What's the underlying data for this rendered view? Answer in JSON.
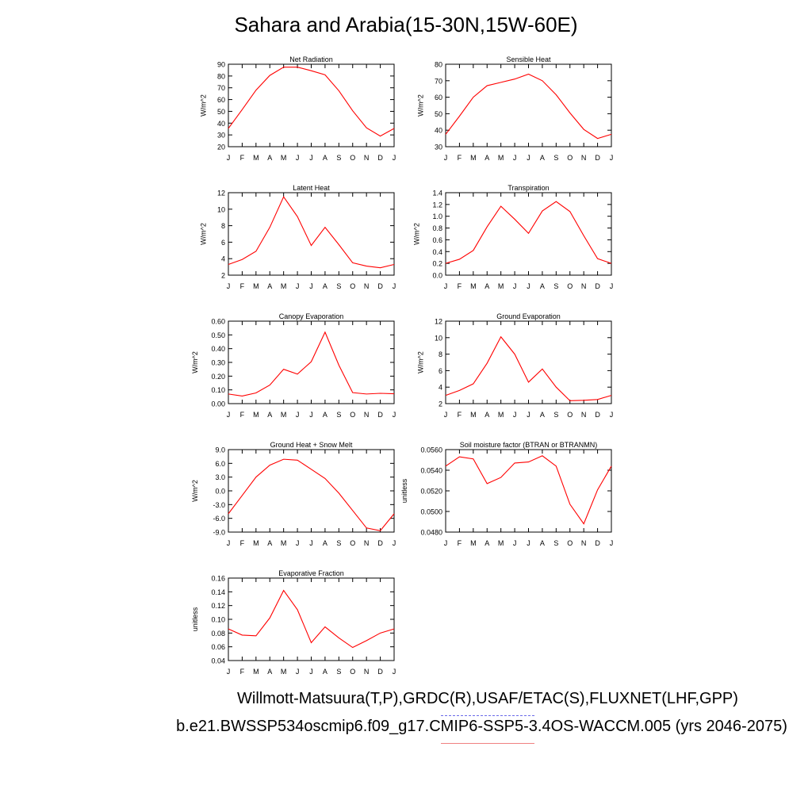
{
  "title": "Sahara and Arabia(15-30N,15W-60E)",
  "legend": {
    "line1": "Willmott-Matsuura(T,P),GRDC(R),USAF/ETAC(S),FLUXNET(LHF,GPP)",
    "line2": "b.e21.BWSSP534oscmip6.f09_g17.CMIP6-SSP5-3.4OS-WACCM.005 (yrs 2046-2075)"
  },
  "colors": {
    "series": "#ff0000",
    "axis": "#000000",
    "dash_blue": "#6a6ae8",
    "dash_red": "#f08080"
  },
  "chart_data": [
    {
      "type": "line",
      "title": "Net Radiation",
      "ylabel": "W/m^2",
      "x": [
        "J",
        "F",
        "M",
        "A",
        "M",
        "J",
        "J",
        "A",
        "S",
        "O",
        "N",
        "D",
        "J"
      ],
      "ylim": [
        20,
        90
      ],
      "yticks": [
        "20",
        "30",
        "40",
        "50",
        "60",
        "70",
        "80",
        "90"
      ],
      "values": [
        35.5,
        51.5,
        68,
        80.5,
        87.5,
        87.5,
        84.5,
        81,
        67.5,
        50.5,
        36,
        29,
        35.5
      ]
    },
    {
      "type": "line",
      "title": "Sensible Heat",
      "ylabel": "W/m^2",
      "x": [
        "J",
        "F",
        "M",
        "A",
        "M",
        "J",
        "J",
        "A",
        "S",
        "O",
        "N",
        "D",
        "J"
      ],
      "ylim": [
        30,
        80
      ],
      "yticks": [
        "30",
        "40",
        "50",
        "60",
        "70",
        "80"
      ],
      "values": [
        37.5,
        48.5,
        60,
        67,
        69,
        71,
        74,
        70,
        61.5,
        50.5,
        40.5,
        35,
        37.5
      ]
    },
    {
      "type": "line",
      "title": "Latent Heat",
      "ylabel": "W/m^2",
      "x": [
        "J",
        "F",
        "M",
        "A",
        "M",
        "J",
        "J",
        "A",
        "S",
        "O",
        "N",
        "D",
        "J"
      ],
      "ylim": [
        2,
        12
      ],
      "yticks": [
        "2",
        "4",
        "6",
        "8",
        "10",
        "12"
      ],
      "values": [
        3.3,
        3.9,
        4.9,
        7.8,
        11.5,
        9.1,
        5.6,
        7.8,
        5.7,
        3.5,
        3.1,
        2.9,
        3.3
      ]
    },
    {
      "type": "line",
      "title": "Transpiration",
      "ylabel": "W/m^2",
      "x": [
        "J",
        "F",
        "M",
        "A",
        "M",
        "J",
        "J",
        "A",
        "S",
        "O",
        "N",
        "D",
        "J"
      ],
      "ylim": [
        0,
        1.4
      ],
      "yticks": [
        "0.0",
        "0.2",
        "0.4",
        "0.6",
        "0.8",
        "1.0",
        "1.2",
        "1.4"
      ],
      "values": [
        0.2,
        0.27,
        0.42,
        0.82,
        1.17,
        0.95,
        0.71,
        1.09,
        1.25,
        1.08,
        0.67,
        0.28,
        0.2
      ]
    },
    {
      "type": "line",
      "title": "Canopy Evaporation",
      "ylabel": "W/m^2",
      "x": [
        "J",
        "F",
        "M",
        "A",
        "M",
        "J",
        "J",
        "A",
        "S",
        "O",
        "N",
        "D",
        "J"
      ],
      "ylim": [
        0,
        0.6
      ],
      "yticks": [
        "0.00",
        "0.10",
        "0.20",
        "0.30",
        "0.40",
        "0.50",
        "0.60"
      ],
      "values": [
        0.07,
        0.055,
        0.078,
        0.135,
        0.25,
        0.215,
        0.305,
        0.52,
        0.28,
        0.08,
        0.07,
        0.075,
        0.072
      ]
    },
    {
      "type": "line",
      "title": "Ground Evaporation",
      "ylabel": "W/m^2",
      "x": [
        "J",
        "F",
        "M",
        "A",
        "M",
        "J",
        "J",
        "A",
        "S",
        "O",
        "N",
        "D",
        "J"
      ],
      "ylim": [
        2,
        12
      ],
      "yticks": [
        "2",
        "4",
        "6",
        "8",
        "10",
        "12"
      ],
      "values": [
        3.0,
        3.6,
        4.4,
        6.9,
        10.1,
        8.0,
        4.6,
        6.2,
        4.0,
        2.35,
        2.4,
        2.5,
        3.0
      ]
    },
    {
      "type": "line",
      "title": "Ground Heat + Snow Melt",
      "ylabel": "W/m^2",
      "x": [
        "J",
        "F",
        "M",
        "A",
        "M",
        "J",
        "J",
        "A",
        "S",
        "O",
        "N",
        "D",
        "J"
      ],
      "ylim": [
        -9,
        9
      ],
      "yticks": [
        "-9.0",
        "-6.0",
        "-3.0",
        "0.0",
        "3.0",
        "6.0",
        "9.0"
      ],
      "values": [
        -5.0,
        -1.0,
        3.0,
        5.6,
        6.9,
        6.7,
        4.7,
        2.7,
        -0.5,
        -4.3,
        -8.1,
        -8.7,
        -5.0
      ]
    },
    {
      "type": "line",
      "title": "Soil moisture factor (BTRAN or BTRANMN)",
      "ylabel": "unitless",
      "x": [
        "J",
        "F",
        "M",
        "A",
        "M",
        "J",
        "J",
        "A",
        "S",
        "O",
        "N",
        "D",
        "J"
      ],
      "ylim": [
        0.048,
        0.056
      ],
      "yticks": [
        "0.0480",
        "0.0500",
        "0.0520",
        "0.0540",
        "0.0560"
      ],
      "values": [
        0.0544,
        0.0553,
        0.0551,
        0.0527,
        0.0533,
        0.0547,
        0.0548,
        0.0554,
        0.0544,
        0.0507,
        0.0488,
        0.0521,
        0.0544
      ]
    },
    {
      "type": "line",
      "title": "Evaporative Fraction",
      "ylabel": "unitless",
      "x": [
        "J",
        "F",
        "M",
        "A",
        "M",
        "J",
        "J",
        "A",
        "S",
        "O",
        "N",
        "D",
        "J"
      ],
      "ylim": [
        0.04,
        0.16
      ],
      "yticks": [
        "0.04",
        "0.06",
        "0.08",
        "0.10",
        "0.12",
        "0.14",
        "0.16"
      ],
      "values": [
        0.086,
        0.077,
        0.076,
        0.102,
        0.142,
        0.114,
        0.066,
        0.089,
        0.073,
        0.059,
        0.069,
        0.08,
        0.086
      ]
    }
  ]
}
